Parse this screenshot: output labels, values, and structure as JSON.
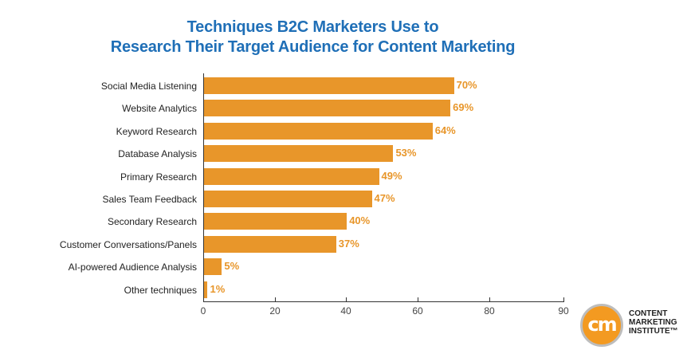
{
  "chart_data": {
    "type": "bar",
    "orientation": "horizontal",
    "title": "Techniques B2C Marketers Use to Research Their Target Audience for Content Marketing",
    "title_lines": [
      "Techniques B2C Marketers Use to",
      "Research Their Target Audience for Content Marketing"
    ],
    "categories": [
      "Social Media Listening",
      "Website Analytics",
      "Keyword Research",
      "Database Analysis",
      "Primary Research",
      "Sales Team Feedback",
      "Secondary Research",
      "Customer Conversations/Panels",
      "AI-powered Audience Analysis",
      "Other techniques"
    ],
    "values": [
      70,
      69,
      64,
      53,
      49,
      47,
      40,
      37,
      5,
      1
    ],
    "value_labels": [
      "70%",
      "69%",
      "64%",
      "53%",
      "49%",
      "47%",
      "40%",
      "37%",
      "5%",
      "1%"
    ],
    "xlabel": "",
    "ylabel": "",
    "xlim": [
      0,
      90
    ],
    "xticks": [
      "0",
      "20",
      "40",
      "60",
      "80",
      "90"
    ],
    "grid": false,
    "legend": null,
    "bar_color": "#E8962A"
  },
  "title_color": "#1F6FB7",
  "logo": {
    "mark": "cm",
    "lines": [
      "CONTENT",
      "MARKETING",
      "INSTITUTE™"
    ]
  }
}
